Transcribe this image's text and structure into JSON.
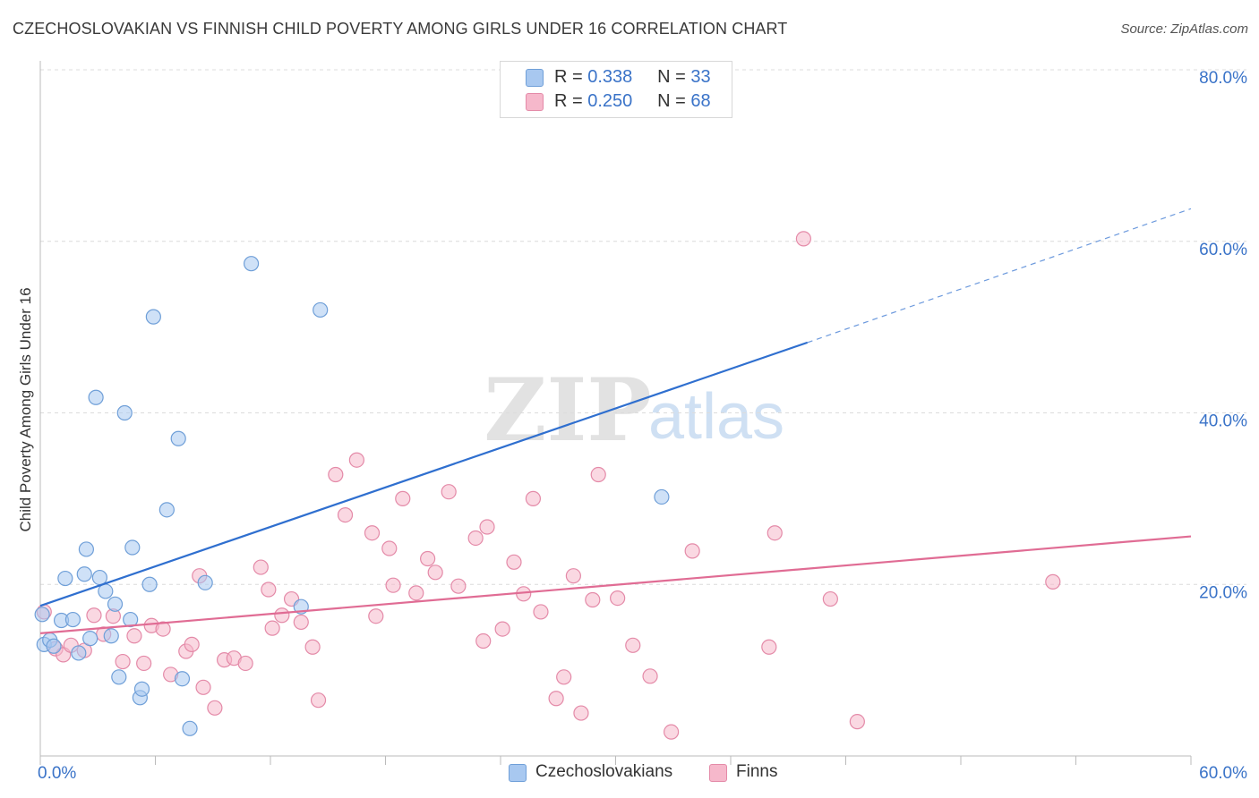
{
  "title": "CZECHOSLOVAKIAN VS FINNISH CHILD POVERTY AMONG GIRLS UNDER 16 CORRELATION CHART",
  "source": "Source: ZipAtlas.com",
  "watermark": {
    "zip": "ZIP",
    "atlas": "atlas"
  },
  "legend": {
    "rows": [
      {
        "r_label": "R =",
        "r_value": "0.338",
        "n_label": "N =",
        "n_value": "33",
        "color": "#a8c8f0",
        "stroke": "#6f9fd8"
      },
      {
        "r_label": "R =",
        "r_value": "0.250",
        "n_label": "N =",
        "n_value": "68",
        "color": "#f6b8cb",
        "stroke": "#e48aa8"
      }
    ]
  },
  "bottom_legend": [
    {
      "label": "Czechoslovakians",
      "color": "#a8c8f0",
      "stroke": "#6f9fd8"
    },
    {
      "label": "Finns",
      "color": "#f6b8cb",
      "stroke": "#e48aa8"
    }
  ],
  "chart_data": {
    "type": "scatter",
    "title": "CZECHOSLOVAKIAN VS FINNISH CHILD POVERTY AMONG GIRLS UNDER 16 CORRELATION CHART",
    "xlabel": "",
    "ylabel": "Child Poverty Among Girls Under 16",
    "xlim": [
      0,
      60
    ],
    "ylim": [
      0,
      80
    ],
    "x_tick_labels": [
      {
        "value": 0,
        "label": "0.0%"
      },
      {
        "value": 60,
        "label": "60.0%"
      }
    ],
    "y_tick_labels": [
      {
        "value": 20,
        "label": "20.0%"
      },
      {
        "value": 40,
        "label": "40.0%"
      },
      {
        "value": 60,
        "label": "60.0%"
      },
      {
        "value": 80,
        "label": "80.0%"
      }
    ],
    "grid": true,
    "legend_placement": "top-center",
    "series": [
      {
        "name": "Czechoslovakians",
        "color": "#a8c8f0",
        "stroke": "#6f9fd8",
        "line_color": "#2f6fcf",
        "trend": {
          "x0": 0,
          "y0": 17.5,
          "x1": 40,
          "y1": 48.2,
          "dash_to_x": 60,
          "dash_to_y": 63.8
        },
        "points": [
          [
            0.1,
            16.5
          ],
          [
            0.2,
            13.0
          ],
          [
            0.5,
            13.5
          ],
          [
            0.7,
            12.8
          ],
          [
            1.1,
            15.8
          ],
          [
            1.3,
            20.7
          ],
          [
            1.7,
            15.9
          ],
          [
            2.0,
            12.0
          ],
          [
            2.3,
            21.2
          ],
          [
            2.4,
            24.1
          ],
          [
            2.6,
            13.7
          ],
          [
            2.9,
            41.8
          ],
          [
            3.1,
            20.8
          ],
          [
            3.4,
            19.2
          ],
          [
            3.7,
            14.0
          ],
          [
            3.9,
            17.7
          ],
          [
            4.1,
            9.2
          ],
          [
            4.4,
            40.0
          ],
          [
            4.7,
            15.9
          ],
          [
            4.8,
            24.3
          ],
          [
            5.2,
            6.8
          ],
          [
            5.3,
            7.8
          ],
          [
            5.7,
            20.0
          ],
          [
            5.9,
            51.2
          ],
          [
            6.6,
            28.7
          ],
          [
            7.2,
            37.0
          ],
          [
            7.4,
            9.0
          ],
          [
            7.8,
            3.2
          ],
          [
            8.6,
            20.2
          ],
          [
            11.0,
            57.4
          ],
          [
            13.6,
            17.4
          ],
          [
            14.6,
            52.0
          ],
          [
            32.4,
            30.2
          ]
        ]
      },
      {
        "name": "Finns",
        "color": "#f6b8cb",
        "stroke": "#e48aa8",
        "line_color": "#e06c94",
        "trend": {
          "x0": 0,
          "y0": 14.3,
          "x1": 60,
          "y1": 25.6
        },
        "points": [
          [
            0.2,
            16.8
          ],
          [
            0.8,
            12.5
          ],
          [
            1.2,
            11.8
          ],
          [
            1.6,
            12.9
          ],
          [
            2.3,
            12.3
          ],
          [
            2.8,
            16.4
          ],
          [
            3.3,
            14.2
          ],
          [
            3.8,
            16.3
          ],
          [
            4.3,
            11.0
          ],
          [
            4.9,
            14.0
          ],
          [
            5.4,
            10.8
          ],
          [
            5.8,
            15.2
          ],
          [
            6.4,
            14.8
          ],
          [
            6.8,
            9.5
          ],
          [
            7.6,
            12.2
          ],
          [
            7.9,
            13.0
          ],
          [
            8.3,
            21.0
          ],
          [
            8.5,
            8.0
          ],
          [
            9.1,
            5.6
          ],
          [
            9.6,
            11.2
          ],
          [
            10.1,
            11.4
          ],
          [
            10.7,
            10.8
          ],
          [
            11.5,
            22.0
          ],
          [
            11.9,
            19.4
          ],
          [
            12.1,
            14.9
          ],
          [
            12.6,
            16.4
          ],
          [
            13.1,
            18.3
          ],
          [
            13.6,
            15.6
          ],
          [
            14.2,
            12.7
          ],
          [
            14.5,
            6.5
          ],
          [
            15.4,
            32.8
          ],
          [
            15.9,
            28.1
          ],
          [
            16.5,
            34.5
          ],
          [
            17.3,
            26.0
          ],
          [
            17.5,
            16.3
          ],
          [
            18.2,
            24.2
          ],
          [
            18.4,
            19.9
          ],
          [
            18.9,
            30.0
          ],
          [
            19.6,
            19.0
          ],
          [
            20.2,
            23.0
          ],
          [
            20.6,
            21.4
          ],
          [
            21.3,
            30.8
          ],
          [
            21.8,
            19.8
          ],
          [
            22.7,
            25.4
          ],
          [
            23.1,
            13.4
          ],
          [
            23.3,
            26.7
          ],
          [
            24.1,
            14.8
          ],
          [
            24.7,
            22.6
          ],
          [
            25.2,
            18.9
          ],
          [
            25.7,
            30.0
          ],
          [
            26.1,
            16.8
          ],
          [
            26.9,
            6.7
          ],
          [
            27.3,
            9.2
          ],
          [
            27.8,
            21.0
          ],
          [
            28.2,
            5.0
          ],
          [
            28.8,
            18.2
          ],
          [
            29.1,
            32.8
          ],
          [
            30.1,
            18.4
          ],
          [
            30.9,
            12.9
          ],
          [
            31.8,
            9.3
          ],
          [
            32.9,
            2.8
          ],
          [
            34.0,
            23.9
          ],
          [
            38.0,
            12.7
          ],
          [
            38.3,
            26.0
          ],
          [
            39.8,
            60.3
          ],
          [
            41.2,
            18.3
          ],
          [
            42.6,
            4.0
          ],
          [
            52.8,
            20.3
          ]
        ]
      }
    ]
  }
}
